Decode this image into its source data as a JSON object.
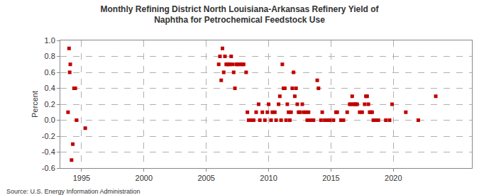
{
  "chart_data": {
    "type": "scatter",
    "title": [
      "Monthly Refining District North Louisiana-Arkansas Refinery Yield of",
      "Naphtha for Petrochemical Feedstock Use"
    ],
    "y_label": "Percent",
    "source": "Source: U.S. Energy Information Administration",
    "color": "#c00000",
    "marker": "square",
    "grid": true,
    "x": [
      1993.92,
      1994.0,
      1994.05,
      1994.1,
      1994.2,
      1994.3,
      1994.4,
      1994.5,
      1994.6,
      1995.3,
      2006.0,
      2006.1,
      2006.2,
      2006.3,
      2006.4,
      2006.5,
      2006.6,
      2006.7,
      2006.8,
      2006.9,
      2007.0,
      2007.1,
      2007.2,
      2007.3,
      2007.4,
      2007.5,
      2007.6,
      2007.8,
      2007.9,
      2008.0,
      2008.2,
      2008.3,
      2008.4,
      2008.6,
      2008.8,
      2009.0,
      2009.2,
      2009.3,
      2009.5,
      2009.7,
      2009.9,
      2010.0,
      2010.2,
      2010.3,
      2010.5,
      2010.6,
      2010.8,
      2010.9,
      2011.0,
      2011.1,
      2011.2,
      2011.3,
      2011.4,
      2011.5,
      2011.6,
      2011.7,
      2011.8,
      2011.9,
      2012.0,
      2012.1,
      2012.2,
      2012.3,
      2012.4,
      2012.5,
      2012.7,
      2012.8,
      2013.0,
      2013.1,
      2013.2,
      2013.3,
      2013.5,
      2013.6,
      2013.9,
      2014.0,
      2014.2,
      2014.3,
      2014.5,
      2014.7,
      2014.9,
      2015.2,
      2015.4,
      2015.5,
      2015.8,
      2016.0,
      2016.3,
      2016.5,
      2016.6,
      2016.7,
      2016.8,
      2016.9,
      2017.0,
      2017.1,
      2017.3,
      2017.5,
      2017.7,
      2017.8,
      2017.9,
      2018.0,
      2018.1,
      2018.2,
      2018.3,
      2018.4,
      2018.5,
      2018.7,
      2018.8,
      2019.4,
      2019.7,
      2019.9,
      2021.0,
      2022.0,
      2023.4
    ],
    "values": [
      0.1,
      0.9,
      0.6,
      0.7,
      -0.5,
      -0.3,
      0.4,
      0.4,
      0.0,
      -0.1,
      0.7,
      0.8,
      0.5,
      0.9,
      0.6,
      0.8,
      0.7,
      0.7,
      0.7,
      0.7,
      0.8,
      0.7,
      0.6,
      0.4,
      0.7,
      0.7,
      0.7,
      0.7,
      0.7,
      0.7,
      0.6,
      0.1,
      0.0,
      0.0,
      0.0,
      0.1,
      0.2,
      0.0,
      0.1,
      0.0,
      0.1,
      0.2,
      0.0,
      0.1,
      0.1,
      0.0,
      0.2,
      0.3,
      0.0,
      0.7,
      0.4,
      0.4,
      0.0,
      0.2,
      0.1,
      0.0,
      0.1,
      0.4,
      0.6,
      0.3,
      0.4,
      0.2,
      0.1,
      0.1,
      0.2,
      0.1,
      0.1,
      0.0,
      0.1,
      0.0,
      0.0,
      0.0,
      0.5,
      0.4,
      0.0,
      0.1,
      0.0,
      0.0,
      0.0,
      0.0,
      0.1,
      0.1,
      0.0,
      0.0,
      0.1,
      0.2,
      0.2,
      0.3,
      0.2,
      0.2,
      0.2,
      0.2,
      0.1,
      0.1,
      0.2,
      0.3,
      0.3,
      0.2,
      0.1,
      0.1,
      0.1,
      0.0,
      0.0,
      0.0,
      0.0,
      0.0,
      0.0,
      0.2,
      0.1,
      0.0,
      0.3
    ],
    "xlim": [
      1993.3,
      2026.3
    ],
    "xticks": [
      1995,
      2000,
      2005,
      2010,
      2015,
      2020
    ],
    "ylim": [
      -0.6,
      1.0
    ],
    "yticks": [
      -0.6,
      -0.4,
      -0.2,
      {
        "value": 0,
        "label": "0.0"
      },
      0.2,
      0.4,
      0.6,
      0.8,
      {
        "value": 1,
        "label": "1.0"
      }
    ]
  }
}
